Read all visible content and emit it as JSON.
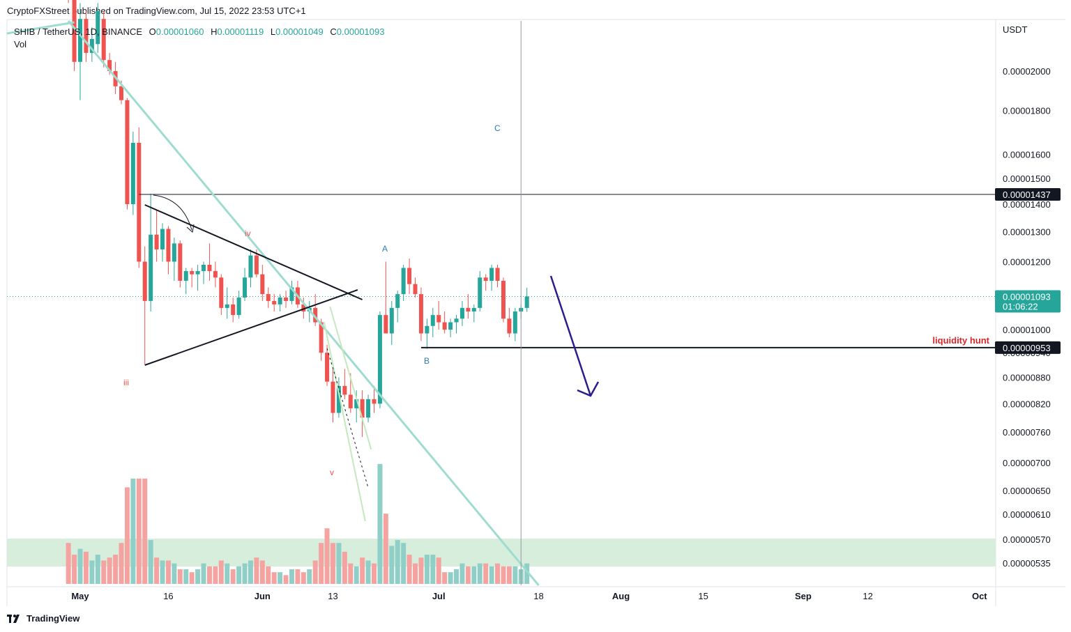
{
  "header": {
    "published_text": "CryptoFXStreet published on TradingView.com, Jul 15, 2022 23:53 UTC+1"
  },
  "legend": {
    "symbol": "SHIB / TetherUS, 1D, BINANCE",
    "open_label": "O",
    "open": "0.00001060",
    "high_label": "H",
    "high": "0.00001119",
    "low_label": "L",
    "low": "0.00001049",
    "close_label": "C",
    "close": "0.00001093",
    "volume_label": "Vol"
  },
  "footer": {
    "brand": "TradingView"
  },
  "colors": {
    "up": "#26a69a",
    "down": "#ef5350",
    "vol_up": "#8fcfc7",
    "vol_down": "#f5a3a1",
    "trendline": "#9fdcd0",
    "wedge": "#c4e9bd",
    "zone": "#d6eedb",
    "arrow": "#2a1d8f",
    "price_badge": "#26a69a"
  },
  "annotations": {
    "wave_iii": "iii",
    "wave_iv": "iv",
    "wave_v": "v",
    "wave_a": "A",
    "wave_b": "B",
    "wave_c": "C",
    "liquidity_label": "liquidity hunt"
  },
  "chart_data": {
    "type": "candlestick",
    "title": "SHIB / TetherUS, 1D, BINANCE",
    "ylabel": "USDT",
    "scale": "log",
    "ylim": [
      5.1e-06,
      2.65e-05
    ],
    "y_ticks": [
      "0.00002000",
      "0.00001800",
      "0.00001600",
      "0.00001500",
      "0.00001400",
      "0.00001300",
      "0.00001200",
      "0.00001000",
      "0.00000940",
      "0.00000880",
      "0.00000820",
      "0.00000760",
      "0.00000700",
      "0.00000650",
      "0.00000610",
      "0.00000570",
      "0.00000535"
    ],
    "x_ticks": [
      {
        "label": "May",
        "day": 0
      },
      {
        "label": "16",
        "day": 15
      },
      {
        "label": "Jun",
        "day": 31
      },
      {
        "label": "13",
        "day": 43
      },
      {
        "label": "Jul",
        "day": 61
      },
      {
        "label": "18",
        "day": 78
      },
      {
        "label": "Aug",
        "day": 92
      },
      {
        "label": "15",
        "day": 106
      },
      {
        "label": "Sep",
        "day": 123
      },
      {
        "label": "12",
        "day": 134
      },
      {
        "label": "Oct",
        "day": 153
      }
    ],
    "price_levels": [
      {
        "value": 1.437e-05,
        "label": "0.00001437"
      },
      {
        "value": 9.53e-06,
        "label": "0.00000953"
      }
    ],
    "current_price": {
      "value": 1.093e-05,
      "label": "0.00001093",
      "countdown": "01:06:22"
    },
    "candles_start_day": -2,
    "candles": [
      [
        2.65e-05,
        2.7e-05,
        2.4e-05,
        2.45e-05,
        14
      ],
      [
        2.45e-05,
        2.5e-05,
        2e-05,
        2.05e-05,
        10
      ],
      [
        2.05e-05,
        2.4e-05,
        1.85e-05,
        2.3e-05,
        12
      ],
      [
        2.3e-05,
        2.35e-05,
        2.05e-05,
        2.1e-05,
        11
      ],
      [
        2.1e-05,
        2.25e-05,
        2.05e-05,
        2.18e-05,
        8
      ],
      [
        2.15e-05,
        2.4e-05,
        2.1e-05,
        2.35e-05,
        10
      ],
      [
        2.3e-05,
        2.35e-05,
        2.02e-05,
        2.06e-05,
        8
      ],
      [
        2.06e-05,
        2.1e-05,
        1.98e-05,
        2e-05,
        9
      ],
      [
        2e-05,
        2.05e-05,
        1.88e-05,
        1.92e-05,
        10
      ],
      [
        1.92e-05,
        1.95e-05,
        1.83e-05,
        1.85e-05,
        14
      ],
      [
        1.85e-05,
        1.86e-05,
        1.38e-05,
        1.4e-05,
        33
      ],
      [
        1.4e-05,
        1.7e-05,
        1.36e-05,
        1.65e-05,
        36
      ],
      [
        1.65e-05,
        1.72e-05,
        1.18e-05,
        1.2e-05,
        36
      ],
      [
        1.2e-05,
        1.25e-05,
        9.1e-06,
        1.08e-05,
        36
      ],
      [
        1.08e-05,
        1.44e-05,
        1.05e-05,
        1.29e-05,
        15
      ],
      [
        1.29e-05,
        1.38e-05,
        1.2e-05,
        1.24e-05,
        9
      ],
      [
        1.24e-05,
        1.33e-05,
        1.2e-05,
        1.31e-05,
        8
      ],
      [
        1.31e-05,
        1.32e-05,
        1.16e-05,
        1.2e-05,
        8
      ],
      [
        1.2e-05,
        1.28e-05,
        1.14e-05,
        1.26e-05,
        7
      ],
      [
        1.26e-05,
        1.27e-05,
        1.12e-05,
        1.14e-05,
        5
      ],
      [
        1.14e-05,
        1.18e-05,
        1.1e-05,
        1.17e-05,
        5
      ],
      [
        1.17e-05,
        1.18e-05,
        1.12e-05,
        1.16e-05,
        4
      ],
      [
        1.16e-05,
        1.19e-05,
        1.11e-05,
        1.17e-05,
        5
      ],
      [
        1.17e-05,
        1.2e-05,
        1.13e-05,
        1.19e-05,
        7
      ],
      [
        1.19e-05,
        1.26e-05,
        1.14e-05,
        1.17e-05,
        6
      ],
      [
        1.17e-05,
        1.2e-05,
        1.12e-05,
        1.15e-05,
        6
      ],
      [
        1.15e-05,
        1.16e-05,
        1.04e-05,
        1.06e-05,
        8
      ],
      [
        1.06e-05,
        1.12e-05,
        1.03e-05,
        1.07e-05,
        7
      ],
      [
        1.07e-05,
        1.09e-05,
        1.02e-05,
        1.04e-05,
        5
      ],
      [
        1.04e-05,
        1.11e-05,
        1.03e-05,
        1.09e-05,
        6
      ],
      [
        1.09e-05,
        1.18e-05,
        1.08e-05,
        1.15e-05,
        7
      ],
      [
        1.15e-05,
        1.24e-05,
        1.12e-05,
        1.22e-05,
        8
      ],
      [
        1.22e-05,
        1.24e-05,
        1.15e-05,
        1.16e-05,
        9
      ],
      [
        1.16e-05,
        1.19e-05,
        1.08e-05,
        1.1e-05,
        8
      ],
      [
        1.1e-05,
        1.12e-05,
        1.06e-05,
        1.08e-05,
        6
      ],
      [
        1.08e-05,
        1.1e-05,
        1.05e-05,
        1.07e-05,
        4
      ],
      [
        1.07e-05,
        1.1e-05,
        1.05e-05,
        1.09e-05,
        4
      ],
      [
        1.09e-05,
        1.11e-05,
        1.06e-05,
        1.08e-05,
        3
      ],
      [
        1.08e-05,
        1.14e-05,
        1.07e-05,
        1.12e-05,
        5
      ],
      [
        1.12e-05,
        1.14e-05,
        1.06e-05,
        1.07e-05,
        5
      ],
      [
        1.07e-05,
        1.09e-05,
        1.03e-05,
        1.05e-05,
        4
      ],
      [
        1.05e-05,
        1.08e-05,
        1.02e-05,
        1.06e-05,
        5
      ],
      [
        1.06e-05,
        1.1e-05,
        1.01e-05,
        1.02e-05,
        8
      ],
      [
        1.02e-05,
        1.03e-05,
        9.2e-06,
        9.4e-06,
        14
      ],
      [
        9.4e-06,
        9.6e-06,
        8.6e-06,
        8.7e-06,
        19
      ],
      [
        8.7e-06,
        9e-06,
        7.8e-06,
        8e-06,
        14
      ],
      [
        8e-06,
        8.8e-06,
        7.9e-06,
        8.6e-06,
        14
      ],
      [
        8.6e-06,
        9e-06,
        8.3e-06,
        8.4e-06,
        11
      ],
      [
        8.4e-06,
        8.9e-06,
        8e-06,
        8.1e-06,
        7
      ],
      [
        8.1e-06,
        8.5e-06,
        7.8e-06,
        8.3e-06,
        6
      ],
      [
        8.3e-06,
        8.5e-06,
        7.5e-06,
        7.9e-06,
        9
      ],
      [
        7.9e-06,
        8.4e-06,
        7.8e-06,
        8.3e-06,
        8
      ],
      [
        8.3e-06,
        8.6e-06,
        8e-06,
        8.2e-06,
        7
      ],
      [
        8.2e-06,
        1.05e-05,
        8.1e-06,
        1.04e-05,
        41
      ],
      [
        1.04e-05,
        1.2e-05,
        9.9e-06,
        9.9e-06,
        24
      ],
      [
        9.9e-06,
        1.08e-05,
        9.6e-06,
        1.06e-05,
        13
      ],
      [
        1.06e-05,
        1.11e-05,
        1.02e-05,
        1.1e-05,
        15
      ],
      [
        1.1e-05,
        1.19e-05,
        1.08e-05,
        1.18e-05,
        14
      ],
      [
        1.18e-05,
        1.21e-05,
        1.1e-05,
        1.13e-05,
        10
      ],
      [
        1.13e-05,
        1.15e-05,
        1.09e-05,
        1.1e-05,
        7
      ],
      [
        1.1e-05,
        1.12e-05,
        9.7e-06,
        9.9e-06,
        9
      ],
      [
        9.9e-06,
        1.03e-05,
        9.5e-06,
        1.01e-05,
        10
      ],
      [
        1.01e-05,
        1.06e-05,
        9.8e-06,
        1.04e-05,
        10
      ],
      [
        1.04e-05,
        1.08e-05,
        1e-05,
        1.02e-05,
        9
      ],
      [
        1.02e-05,
        1.05e-05,
        9.9e-06,
        1e-05,
        4
      ],
      [
        1e-05,
        1.03e-05,
        9.8e-06,
        1.02e-05,
        4
      ],
      [
        1.02e-05,
        1.04e-05,
        9.9e-06,
        1.03e-05,
        5
      ],
      [
        1.03e-05,
        1.08e-05,
        1.01e-05,
        1.06e-05,
        7
      ],
      [
        1.06e-05,
        1.1e-05,
        1.03e-05,
        1.05e-05,
        6
      ],
      [
        1.05e-05,
        1.07e-05,
        1.02e-05,
        1.06e-05,
        6
      ],
      [
        1.06e-05,
        1.17e-05,
        1.05e-05,
        1.15e-05,
        7
      ],
      [
        1.15e-05,
        1.16e-05,
        1.11e-05,
        1.14e-05,
        7
      ],
      [
        1.14e-05,
        1.19e-05,
        1.11e-05,
        1.18e-05,
        6
      ],
      [
        1.18e-05,
        1.19e-05,
        1.12e-05,
        1.14e-05,
        7
      ],
      [
        1.14e-05,
        1.15e-05,
        1.02e-05,
        1.03e-05,
        6
      ],
      [
        1.03e-05,
        1.06e-05,
        9.8e-06,
        9.9e-06,
        6
      ],
      [
        9.9e-06,
        1.06e-05,
        9.7e-06,
        1.05e-05,
        6
      ],
      [
        1.05e-05,
        1.07e-05,
        1.03e-05,
        1.06e-05,
        5
      ],
      [
        1.06e-05,
        1.119e-05,
        1.049e-05,
        1.093e-05,
        7
      ]
    ]
  }
}
